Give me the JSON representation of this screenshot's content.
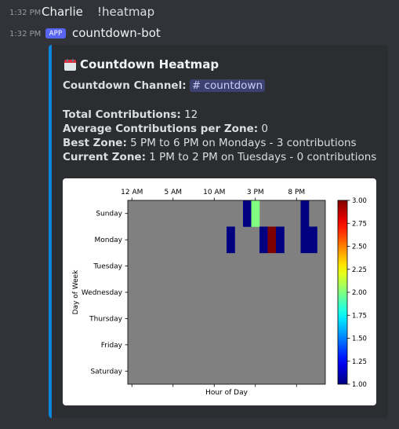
{
  "messages": [
    {
      "time": "1:32 PM",
      "author": "Charlie",
      "text": "!heatmap"
    },
    {
      "time": "1:32 PM",
      "badge": "APP",
      "author": "countdown-bot"
    }
  ],
  "embed": {
    "accent_color": "#0b84d9",
    "icon": "calendar-icon",
    "title": "Countdown Heatmap",
    "channel_label": "Countdown Channel:",
    "channel_name": "# countdown",
    "total_label": "Total Contributions:",
    "total_value": "12",
    "average_label": "Average Contributions per Zone:",
    "average_value": "0",
    "best_label": "Best Zone:",
    "best_value": "5 PM to 6 PM on Mondays - 3 contributions",
    "current_label": "Current Zone:",
    "current_value": "1 PM to 2 PM on Tuesdays - 0 contributions"
  },
  "chart_data": {
    "type": "heatmap",
    "xlabel": "Hour of Day",
    "ylabel": "Day of Week",
    "x_ticks": [
      {
        "hour": 0,
        "label": "12 AM"
      },
      {
        "hour": 5,
        "label": "5 AM"
      },
      {
        "hour": 10,
        "label": "10 AM"
      },
      {
        "hour": 15,
        "label": "3 PM"
      },
      {
        "hour": 20,
        "label": "8 PM"
      }
    ],
    "rows": [
      "Sunday",
      "Monday",
      "Tuesday",
      "Wednesday",
      "Thursday",
      "Friday",
      "Saturday"
    ],
    "hours": 24,
    "zero_color": "#808080",
    "colorbar": {
      "min": 1.0,
      "max": 3.0,
      "ticks": [
        "1.00",
        "1.25",
        "1.50",
        "1.75",
        "2.00",
        "2.25",
        "2.50",
        "2.75",
        "3.00"
      ],
      "colormap": "jet"
    },
    "cells": [
      {
        "day": 0,
        "hour": 14,
        "value": 1
      },
      {
        "day": 0,
        "hour": 15,
        "value": 2
      },
      {
        "day": 0,
        "hour": 21,
        "value": 1
      },
      {
        "day": 1,
        "hour": 12,
        "value": 1
      },
      {
        "day": 1,
        "hour": 16,
        "value": 1
      },
      {
        "day": 1,
        "hour": 17,
        "value": 3
      },
      {
        "day": 1,
        "hour": 18,
        "value": 1
      },
      {
        "day": 1,
        "hour": 21,
        "value": 1
      },
      {
        "day": 1,
        "hour": 22,
        "value": 1
      }
    ]
  }
}
